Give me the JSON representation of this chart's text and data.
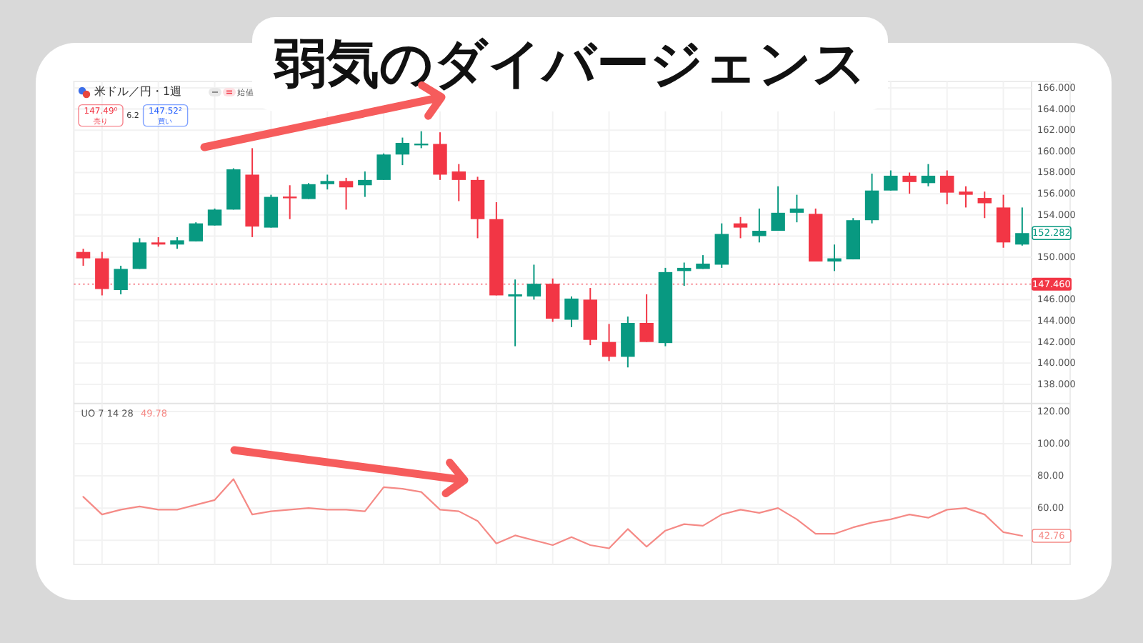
{
  "chart_data": [
    {
      "type": "candlestick",
      "title": "弱気のダイバージェンス",
      "categories": [
        null,
        null,
        null,
        null,
        null,
        null,
        null,
        null,
        null,
        null,
        null,
        null,
        null,
        null,
        null,
        null,
        null,
        null,
        null,
        null,
        null,
        null,
        null,
        null,
        null,
        null,
        null,
        null,
        null,
        null,
        null,
        null,
        null,
        null,
        null,
        null,
        null,
        null,
        null,
        null,
        null,
        null,
        null,
        null,
        null,
        null,
        null,
        null,
        null,
        null,
        null
      ],
      "ohlc": [
        [
          150.5,
          150.8,
          149.2,
          149.9
        ],
        [
          149.9,
          150.5,
          146.4,
          147.0
        ],
        [
          146.9,
          149.2,
          146.5,
          148.9
        ],
        [
          148.9,
          151.8,
          148.9,
          151.4
        ],
        [
          151.4,
          151.9,
          151.0,
          151.2
        ],
        [
          151.2,
          151.9,
          150.8,
          151.6
        ],
        [
          151.5,
          153.3,
          151.5,
          153.2
        ],
        [
          153.0,
          154.6,
          153.0,
          154.5
        ],
        [
          154.5,
          158.4,
          154.5,
          158.3
        ],
        [
          157.8,
          160.3,
          151.9,
          152.9
        ],
        [
          152.8,
          155.9,
          152.8,
          155.7
        ],
        [
          155.7,
          156.8,
          153.6,
          155.6
        ],
        [
          155.5,
          157.0,
          155.5,
          156.9
        ],
        [
          156.9,
          157.8,
          156.4,
          157.2
        ],
        [
          157.2,
          157.5,
          154.5,
          156.6
        ],
        [
          156.8,
          158.1,
          155.7,
          157.3
        ],
        [
          157.3,
          159.8,
          157.3,
          159.7
        ],
        [
          159.7,
          161.3,
          158.7,
          160.8
        ],
        [
          160.6,
          161.9,
          160.3,
          160.7
        ],
        [
          160.7,
          161.8,
          157.3,
          157.8
        ],
        [
          158.1,
          158.8,
          155.3,
          157.3
        ],
        [
          157.3,
          157.6,
          151.8,
          153.6
        ],
        [
          153.6,
          155.2,
          146.4,
          146.4
        ],
        [
          146.3,
          147.9,
          141.6,
          146.5
        ],
        [
          146.3,
          149.3,
          146.0,
          147.5
        ],
        [
          147.5,
          148.0,
          143.9,
          144.2
        ],
        [
          144.1,
          146.3,
          143.4,
          146.1
        ],
        [
          146.0,
          147.1,
          141.7,
          142.2
        ],
        [
          142.0,
          143.7,
          140.2,
          140.6
        ],
        [
          140.6,
          144.4,
          139.6,
          143.8
        ],
        [
          143.8,
          146.5,
          142.0,
          142.0
        ],
        [
          141.9,
          149.0,
          141.6,
          148.6
        ],
        [
          148.7,
          149.5,
          147.3,
          149.0
        ],
        [
          148.9,
          150.2,
          148.9,
          149.4
        ],
        [
          149.3,
          153.2,
          149.0,
          152.2
        ],
        [
          153.2,
          153.8,
          151.8,
          152.8
        ],
        [
          152.0,
          154.6,
          151.4,
          152.5
        ],
        [
          152.5,
          156.7,
          152.5,
          154.2
        ],
        [
          154.2,
          155.9,
          153.3,
          154.6
        ],
        [
          154.1,
          154.6,
          149.6,
          149.6
        ],
        [
          149.6,
          151.2,
          148.7,
          149.9
        ],
        [
          149.8,
          153.7,
          149.8,
          153.5
        ],
        [
          153.5,
          157.9,
          153.2,
          156.3
        ],
        [
          156.3,
          158.2,
          156.3,
          157.7
        ],
        [
          157.7,
          158.0,
          156.0,
          157.1
        ],
        [
          157.0,
          158.8,
          156.7,
          157.7
        ],
        [
          157.7,
          158.2,
          155.0,
          156.1
        ],
        [
          156.2,
          156.7,
          154.7,
          155.9
        ],
        [
          155.6,
          156.2,
          153.7,
          155.1
        ],
        [
          154.7,
          155.9,
          150.9,
          151.4
        ],
        [
          151.2,
          154.7,
          151.1,
          152.282
        ]
      ],
      "colors": [
        "#f23645",
        "#f23645",
        "#089981",
        "#089981",
        "#f23645",
        "#089981",
        "#089981",
        "#089981",
        "#089981",
        "#f23645",
        "#089981",
        "#f23645",
        "#089981",
        "#089981",
        "#f23645",
        "#089981",
        "#089981",
        "#089981",
        "#089981",
        "#f23645",
        "#f23645",
        "#f23645",
        "#f23645",
        "#089981",
        "#089981",
        "#f23645",
        "#089981",
        "#f23645",
        "#f23645",
        "#089981",
        "#f23645",
        "#089981",
        "#089981",
        "#089981",
        "#089981",
        "#f23645",
        "#089981",
        "#089981",
        "#089981",
        "#f23645",
        "#089981",
        "#089981",
        "#089981",
        "#089981",
        "#f23645",
        "#089981",
        "#f23645",
        "#f23645",
        "#f23645",
        "#f23645",
        "#089981"
      ],
      "ylim": [
        136.2,
        166.6
      ],
      "yticks": [
        {
          "value": 138,
          "label": "138.000"
        },
        {
          "value": 140,
          "label": "140.000"
        },
        {
          "value": 142,
          "label": "142.000"
        },
        {
          "value": 144,
          "label": "144.000"
        },
        {
          "value": 146,
          "label": "146.000"
        },
        {
          "value": 148,
          "label": null
        },
        {
          "value": 150,
          "label": "150.000"
        },
        {
          "value": 152,
          "label": null
        },
        {
          "value": 154,
          "label": "154.000"
        },
        {
          "value": 156,
          "label": "156.000"
        },
        {
          "value": 158,
          "label": "158.000"
        },
        {
          "value": 160,
          "label": "160.000"
        },
        {
          "value": 162,
          "label": "162.000"
        },
        {
          "value": 164,
          "label": "164.000"
        },
        {
          "value": 166,
          "label": "166.000"
        }
      ],
      "tick_labels": "y",
      "grid": true,
      "ref_lines": [
        {
          "axis": "y",
          "value": 147.46,
          "label": "147.460",
          "color": "#f23645",
          "line_style": "dotted"
        }
      ],
      "annotations": [
        "米ドル／円・1週",
        "始値",
        "147.49⁰",
        "売り",
        "6.2",
        "147.52²",
        "買い",
        {
          "text": "152.282",
          "y": 152.282
        }
      ]
    },
    {
      "type": "line",
      "title": "UO 7 14 28",
      "categories": [
        null,
        null,
        null,
        null,
        null,
        null,
        null,
        null,
        null,
        null,
        null,
        null,
        null,
        null,
        null,
        null,
        null,
        null,
        null,
        null,
        null,
        null,
        null,
        null,
        null,
        null,
        null,
        null,
        null,
        null,
        null,
        null,
        null,
        null,
        null,
        null,
        null,
        null,
        null,
        null,
        null,
        null,
        null,
        null,
        null,
        null,
        null,
        null,
        null,
        null,
        null
      ],
      "series": [
        {
          "color": "#f58a86",
          "values": [
            67,
            56,
            59,
            61,
            59,
            59,
            62,
            65,
            78,
            56,
            58,
            59,
            60,
            59,
            59,
            58,
            73,
            72,
            70,
            59,
            58,
            52,
            38,
            43,
            40,
            37,
            42,
            37,
            35,
            47,
            36,
            46,
            50,
            49,
            56,
            59,
            57,
            60,
            53,
            44,
            44,
            48,
            51,
            53,
            56,
            54,
            59,
            60,
            56,
            45,
            42.76
          ]
        }
      ],
      "ylim": [
        25,
        125
      ],
      "yticks": [
        {
          "value": 40,
          "label": null
        },
        {
          "value": 60,
          "label": "60.00"
        },
        {
          "value": 80,
          "label": "80.00"
        },
        {
          "value": 100,
          "label": "100.00"
        },
        {
          "value": 120,
          "label": "120.00"
        }
      ],
      "tick_labels": "y",
      "grid": true,
      "annotations": [
        "49.78",
        {
          "text": "42.76",
          "y": 42.76
        }
      ]
    }
  ]
}
